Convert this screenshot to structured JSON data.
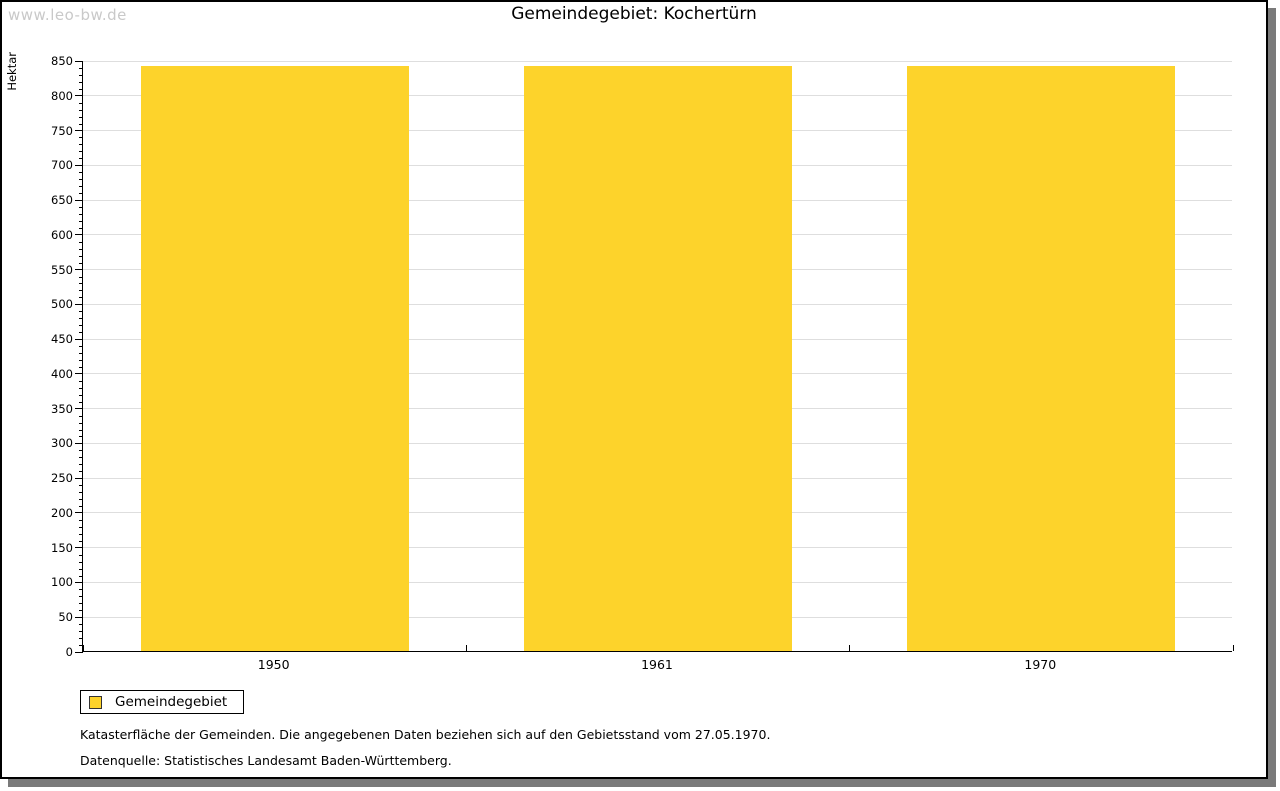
{
  "watermark": "www.leo-bw.de",
  "header": {
    "title": "Gemeindegebiet: Kochertürn"
  },
  "chart_data": {
    "type": "bar",
    "title": "Gemeindegebiet: Kochertürn",
    "categories": [
      "1950",
      "1961",
      "1970"
    ],
    "series": [
      {
        "name": "Gemeindegebiet",
        "values": [
          842,
          842,
          842
        ]
      }
    ],
    "xlabel": "",
    "ylabel": "Hektar",
    "ylim": [
      0,
      850
    ],
    "ytick_step": 50,
    "ytick_minor_step": 10,
    "yticks": [
      0,
      50,
      100,
      150,
      200,
      250,
      300,
      350,
      400,
      450,
      500,
      550,
      600,
      650,
      700,
      750,
      800,
      850
    ],
    "grid": true,
    "legend_position": "bottom-left",
    "bar_color": "#fdd32b"
  },
  "legend": {
    "label": "Gemeindegebiet",
    "swatch_color": "#fdd32b"
  },
  "footnotes": {
    "line1": "Katasterfläche der Gemeinden. Die angegebenen Daten beziehen sich auf den Gebietsstand vom 27.05.1970.",
    "line2": "Datenquelle: Statistisches Landesamt Baden-Württemberg."
  },
  "colors": {
    "bar": "#fdd32b",
    "gridline": "#dedede",
    "axis": "#000000",
    "watermark": "#c9c9c9",
    "frame_border": "#000000",
    "frame_shadow": "#7a7a7a",
    "background": "#ffffff"
  }
}
